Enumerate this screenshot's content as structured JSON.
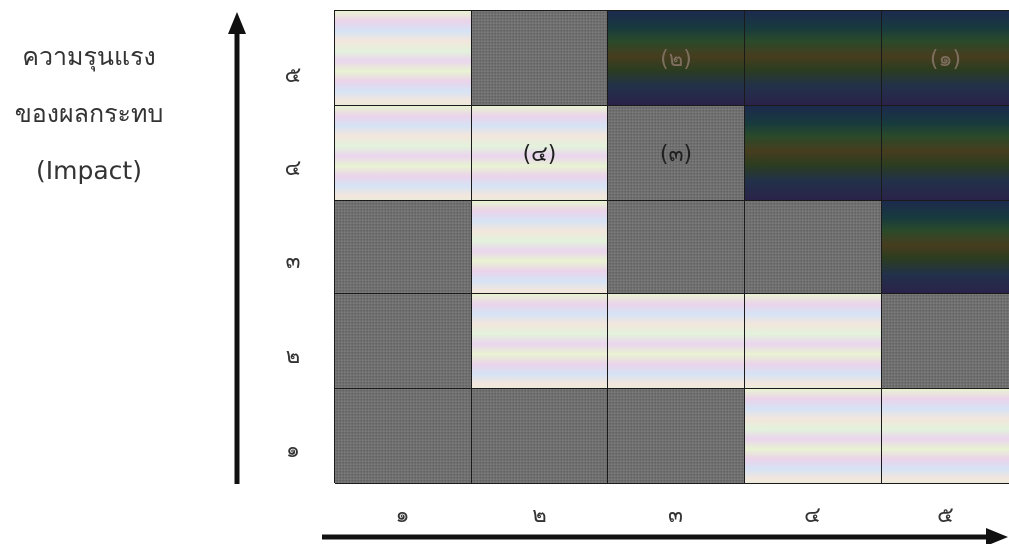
{
  "y_title": {
    "line1": "ความรุนแรง",
    "line2": "ของผลกระทบ",
    "line3": "(Impact)"
  },
  "y_ticks": [
    "๕",
    "๔",
    "๓",
    "๒",
    "๑"
  ],
  "x_ticks": [
    "๑",
    "๒",
    "๓",
    "๔",
    "๕"
  ],
  "colors": {
    "low": "pastel-iridescent",
    "medium": "#6f6f6f",
    "high": "#1d2a3e"
  },
  "grid": {
    "rows": [
      {
        "impact": "๕",
        "cells": [
          {
            "level": "low",
            "label": ""
          },
          {
            "level": "medium",
            "label": ""
          },
          {
            "level": "high",
            "label": "(๒)"
          },
          {
            "level": "high",
            "label": ""
          },
          {
            "level": "high",
            "label": "(๑)"
          }
        ]
      },
      {
        "impact": "๔",
        "cells": [
          {
            "level": "low",
            "label": ""
          },
          {
            "level": "low",
            "label": "(๔)"
          },
          {
            "level": "medium",
            "label": "(๓)"
          },
          {
            "level": "high",
            "label": ""
          },
          {
            "level": "high",
            "label": ""
          }
        ]
      },
      {
        "impact": "๓",
        "cells": [
          {
            "level": "medium",
            "label": ""
          },
          {
            "level": "low",
            "label": ""
          },
          {
            "level": "medium",
            "label": ""
          },
          {
            "level": "medium",
            "label": ""
          },
          {
            "level": "high",
            "label": ""
          }
        ]
      },
      {
        "impact": "๒",
        "cells": [
          {
            "level": "medium",
            "label": ""
          },
          {
            "level": "low",
            "label": ""
          },
          {
            "level": "low",
            "label": ""
          },
          {
            "level": "low",
            "label": ""
          },
          {
            "level": "medium",
            "label": ""
          }
        ]
      },
      {
        "impact": "๑",
        "cells": [
          {
            "level": "medium",
            "label": ""
          },
          {
            "level": "medium",
            "label": ""
          },
          {
            "level": "medium",
            "label": ""
          },
          {
            "level": "low",
            "label": ""
          },
          {
            "level": "low",
            "label": ""
          }
        ]
      }
    ]
  }
}
